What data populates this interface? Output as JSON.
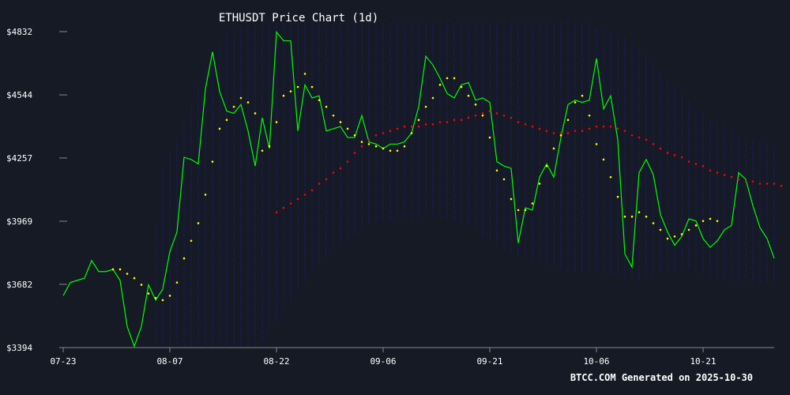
{
  "chart_data": {
    "type": "line",
    "title": "ETHUSDT Price Chart (1d)",
    "footer": "BTCC.COM Generated on 2025-10-30",
    "xlabel": "",
    "ylabel": "",
    "ylim": [
      3394,
      4832
    ],
    "y_ticks": [
      "$4832",
      "$4544",
      "$4257",
      "$3969",
      "$3682",
      "$3394"
    ],
    "y_tick_values": [
      4832,
      4544,
      4257,
      3969,
      3682,
      3394
    ],
    "x_ticks": [
      "07-23",
      "08-07",
      "08-22",
      "09-06",
      "09-21",
      "10-06",
      "10-21"
    ],
    "x_tick_index": [
      0,
      15,
      30,
      45,
      60,
      75,
      90
    ],
    "grid": false,
    "legend": "none",
    "colors": {
      "background": "#161a25",
      "price": "#00ff00",
      "short_ma": "#ffff00",
      "long_ma": "#ff0000",
      "band": "#1c1c8c",
      "axis": "#888888"
    },
    "series": [
      {
        "key": "price",
        "start_index": 0,
        "values": [
          3630,
          3690,
          3700,
          3710,
          3790,
          3740,
          3740,
          3750,
          3700,
          3490,
          3400,
          3490,
          3680,
          3610,
          3660,
          3830,
          3920,
          4260,
          4250,
          4230,
          4570,
          4740,
          4560,
          4470,
          4460,
          4500,
          4380,
          4220,
          4440,
          4300,
          4830,
          4790,
          4790,
          4380,
          4590,
          4530,
          4540,
          4380,
          4390,
          4400,
          4350,
          4350,
          4450,
          4330,
          4320,
          4300,
          4320,
          4320,
          4330,
          4370,
          4490,
          4720,
          4680,
          4620,
          4550,
          4530,
          4590,
          4600,
          4520,
          4530,
          4510,
          4240,
          4220,
          4210,
          3870,
          4030,
          4020,
          4170,
          4230,
          4170,
          4350,
          4500,
          4520,
          4510,
          4520,
          4710,
          4480,
          4540,
          4340,
          3820,
          3760,
          4190,
          4250,
          4180,
          4000,
          3920,
          3860,
          3900,
          3980,
          3970,
          3890,
          3850,
          3880,
          3930,
          3950,
          4190,
          4160,
          4040,
          3940,
          3890,
          3800
        ]
      },
      {
        "key": "short_ma",
        "start_index": 7,
        "values": [
          3750,
          3750,
          3730,
          3710,
          3680,
          3640,
          3620,
          3610,
          3630,
          3690,
          3800,
          3880,
          3960,
          4090,
          4240,
          4390,
          4430,
          4490,
          4530,
          4510,
          4460,
          4290,
          4310,
          4420,
          4540,
          4560,
          4580,
          4640,
          4580,
          4520,
          4490,
          4450,
          4420,
          4390,
          4360,
          4330,
          4320,
          4310,
          4300,
          4290,
          4290,
          4310,
          4370,
          4430,
          4490,
          4530,
          4590,
          4620,
          4620,
          4580,
          4540,
          4500,
          4450,
          4350,
          4200,
          4160,
          4070,
          4020,
          4020,
          4050,
          4140,
          4220,
          4300,
          4360,
          4430,
          4510,
          4540,
          4450,
          4320,
          4250,
          4170,
          4080,
          3990,
          3990,
          4010,
          3990,
          3960,
          3930,
          3890,
          3900,
          3910,
          3930,
          3950,
          3970,
          3980,
          3970
        ]
      },
      {
        "key": "long_ma",
        "start_index": 30,
        "values": [
          4010,
          4030,
          4050,
          4070,
          4090,
          4110,
          4140,
          4160,
          4190,
          4210,
          4240,
          4280,
          4310,
          4340,
          4360,
          4370,
          4380,
          4390,
          4400,
          4400,
          4400,
          4410,
          4410,
          4420,
          4420,
          4430,
          4430,
          4440,
          4450,
          4460,
          4470,
          4460,
          4450,
          4440,
          4420,
          4410,
          4400,
          4390,
          4380,
          4370,
          4370,
          4370,
          4380,
          4380,
          4390,
          4400,
          4400,
          4400,
          4390,
          4380,
          4360,
          4350,
          4340,
          4320,
          4300,
          4280,
          4270,
          4260,
          4240,
          4230,
          4220,
          4200,
          4190,
          4180,
          4170,
          4160,
          4150,
          4150,
          4140,
          4140,
          4140,
          4130
        ]
      }
    ],
    "band": {
      "start_index": 13,
      "upper": [
        3960,
        4200,
        4280,
        4350,
        4430,
        4500,
        4590,
        4690,
        4740,
        4790,
        4820,
        4840,
        4850,
        4860,
        4860,
        4870,
        4870,
        4870,
        4870,
        4870,
        4870,
        4870,
        4870,
        4870,
        4870,
        4870,
        4870,
        4870,
        4870,
        4870,
        4870,
        4870,
        4870,
        4870,
        4870,
        4870,
        4870,
        4870,
        4870,
        4870,
        4870,
        4870,
        4870,
        4870,
        4870,
        4870,
        4870,
        4870,
        4870,
        4870,
        4870,
        4870,
        4870,
        4870,
        4870,
        4870,
        4870,
        4870,
        4870,
        4870,
        4870,
        4870,
        4850,
        4840,
        4830,
        4820,
        4800,
        4780,
        4760,
        4730,
        4700,
        4650,
        4610,
        4580,
        4550,
        4510,
        4480,
        4460,
        4430,
        4410,
        4400,
        4380,
        4360,
        4350,
        4340,
        4330,
        4320,
        4310
      ],
      "lower": [
        3400,
        3400,
        3400,
        3400,
        3400,
        3400,
        3400,
        3400,
        3400,
        3400,
        3400,
        3400,
        3400,
        3400,
        3400,
        3420,
        3460,
        3510,
        3560,
        3610,
        3660,
        3700,
        3740,
        3770,
        3800,
        3830,
        3860,
        3880,
        3910,
        3930,
        3950,
        3960,
        3970,
        3970,
        3980,
        3980,
        3980,
        3980,
        3990,
        3990,
        3990,
        3980,
        3970,
        3960,
        3950,
        3920,
        3900,
        3880,
        3860,
        3840,
        3820,
        3810,
        3800,
        3790,
        3780,
        3770,
        3760,
        3750,
        3740,
        3740,
        3740,
        3740,
        3740,
        3730,
        3730,
        3720,
        3710,
        3700,
        3700,
        3710,
        3720,
        3730,
        3740,
        3750,
        3750,
        3750,
        3740,
        3730,
        3720,
        3710,
        3700,
        3690,
        3690,
        3690,
        3690,
        3690,
        3690,
        3690
      ]
    }
  }
}
